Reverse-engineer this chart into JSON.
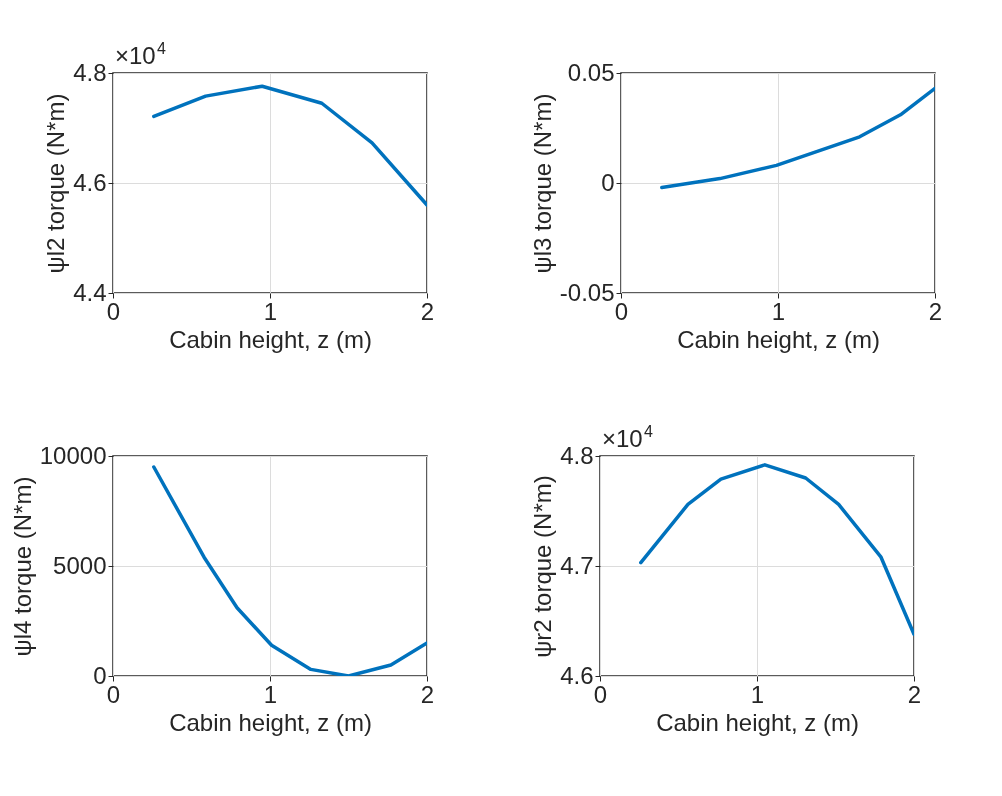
{
  "chart_data": [
    {
      "type": "line",
      "ylabel": "ψl2 torque (N*m)",
      "xlabel": "Cabin height, z (m)",
      "annotations": [
        "×10$^{4}$"
      ],
      "x": [
        0.26,
        0.59,
        0.95,
        1.33,
        1.65,
        2.0
      ],
      "series": [
        {
          "color": "#0072bd",
          "values": [
            4.721,
            4.758,
            4.776,
            4.745,
            4.673,
            4.56
          ]
        }
      ],
      "xlim": [
        0,
        2
      ],
      "xticks": [
        0,
        1,
        2
      ],
      "ylim": [
        4.4,
        4.8
      ],
      "yticks": [
        4.4,
        4.6,
        4.8
      ],
      "grid": true,
      "marker": "none",
      "line_style": "solid"
    },
    {
      "type": "line",
      "ylabel": "ψl3 torque (N*m)",
      "xlabel": "Cabin height, z (m)",
      "x": [
        0.26,
        0.63,
        0.99,
        1.52,
        1.78,
        2.0
      ],
      "series": [
        {
          "color": "#0072bd",
          "values": [
            -0.002,
            0.002,
            0.008,
            0.021,
            0.031,
            0.043
          ]
        }
      ],
      "xlim": [
        0,
        2
      ],
      "xticks": [
        0,
        1,
        2
      ],
      "ylim": [
        -0.05,
        0.05
      ],
      "yticks": [
        -0.05,
        0,
        0.05
      ],
      "grid": true,
      "marker": "none",
      "line_style": "solid"
    },
    {
      "type": "line",
      "ylabel": "ψl4 torque (N*m)",
      "xlabel": "Cabin height, z (m)",
      "x": [
        0.26,
        0.58,
        0.79,
        1.01,
        1.26,
        1.5,
        1.77,
        2.0
      ],
      "series": [
        {
          "color": "#0072bd",
          "values": [
            9500,
            5400,
            3100,
            1400,
            300,
            0,
            500,
            1500
          ]
        }
      ],
      "xlim": [
        0,
        2
      ],
      "xticks": [
        0,
        1,
        2
      ],
      "ylim": [
        0,
        10000
      ],
      "yticks": [
        0,
        5000,
        10000
      ],
      "grid": true,
      "marker": "none",
      "line_style": "solid"
    },
    {
      "type": "line",
      "ylabel": "ψr2 torque (N*m)",
      "xlabel": "Cabin height, z (m)",
      "annotations": [
        "×10$^{4}$"
      ],
      "x": [
        0.26,
        0.56,
        0.77,
        1.05,
        1.31,
        1.52,
        1.79,
        2.0
      ],
      "series": [
        {
          "color": "#0072bd",
          "values": [
            4.703,
            4.756,
            4.779,
            4.792,
            4.78,
            4.756,
            4.708,
            4.638
          ]
        }
      ],
      "xlim": [
        0,
        2
      ],
      "xticks": [
        0,
        1,
        2
      ],
      "ylim": [
        4.6,
        4.8
      ],
      "yticks": [
        4.6,
        4.7,
        4.8
      ],
      "grid": true,
      "marker": "none",
      "line_style": "solid"
    }
  ]
}
